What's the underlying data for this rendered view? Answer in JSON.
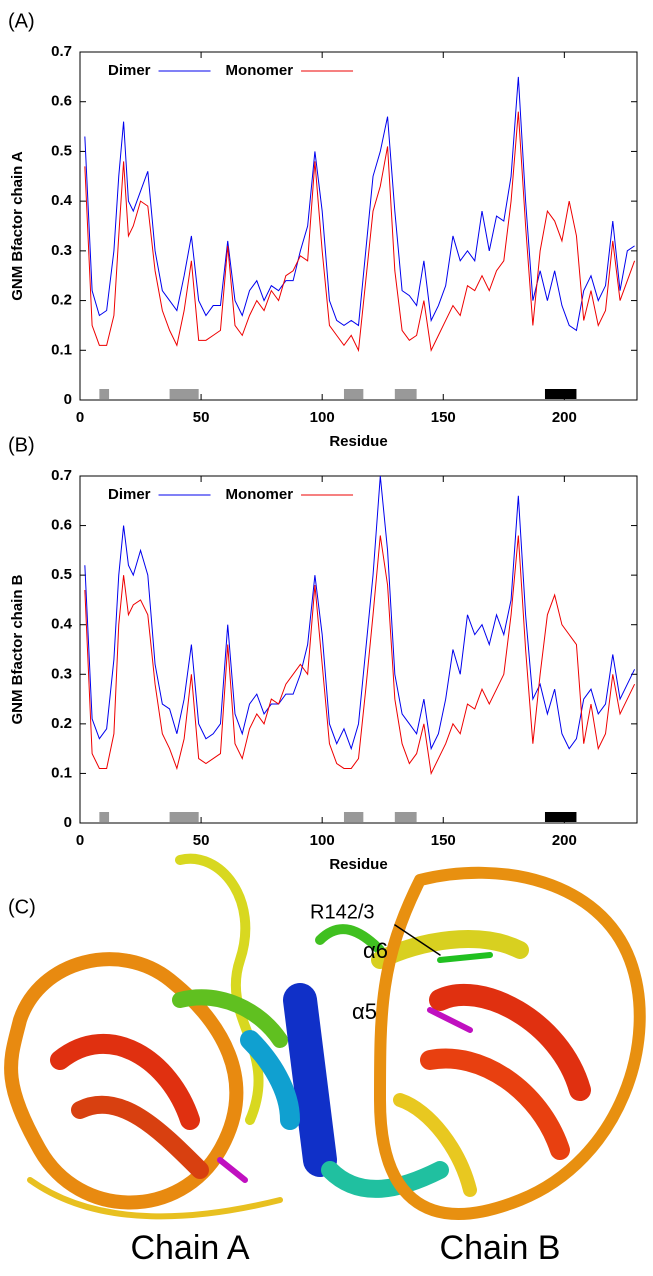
{
  "chart_data": [
    {
      "type": "line",
      "label": "(A)",
      "xlabel": "Residue",
      "ylabel": "GNM Bfactor chain A",
      "xlim": [
        0,
        230
      ],
      "xticks": [
        0,
        50,
        100,
        150,
        200
      ],
      "ylim": [
        0,
        0.7
      ],
      "yticks": [
        0,
        0.1,
        0.2,
        0.3,
        0.4,
        0.5,
        0.6,
        0.7
      ],
      "grid": false,
      "legend": "top-left",
      "x": [
        2,
        5,
        8,
        11,
        14,
        16,
        18,
        20,
        22,
        25,
        28,
        31,
        34,
        37,
        40,
        43,
        46,
        49,
        52,
        55,
        58,
        61,
        64,
        67,
        70,
        73,
        76,
        79,
        82,
        85,
        88,
        91,
        94,
        97,
        100,
        103,
        106,
        109,
        112,
        115,
        118,
        121,
        124,
        127,
        130,
        133,
        136,
        139,
        142,
        145,
        148,
        151,
        154,
        157,
        160,
        163,
        166,
        169,
        172,
        175,
        178,
        181,
        184,
        187,
        190,
        193,
        196,
        199,
        202,
        205,
        208,
        211,
        214,
        217,
        220,
        223,
        226,
        229
      ],
      "series": [
        {
          "name": "Dimer",
          "color": "#0000ee",
          "values": [
            0.53,
            0.22,
            0.17,
            0.18,
            0.3,
            0.45,
            0.56,
            0.4,
            0.38,
            0.42,
            0.46,
            0.3,
            0.22,
            0.2,
            0.18,
            0.25,
            0.33,
            0.2,
            0.17,
            0.19,
            0.19,
            0.32,
            0.2,
            0.17,
            0.22,
            0.24,
            0.2,
            0.23,
            0.22,
            0.24,
            0.24,
            0.3,
            0.35,
            0.5,
            0.38,
            0.2,
            0.16,
            0.15,
            0.16,
            0.15,
            0.3,
            0.45,
            0.5,
            0.57,
            0.38,
            0.22,
            0.21,
            0.19,
            0.28,
            0.16,
            0.19,
            0.23,
            0.33,
            0.28,
            0.3,
            0.28,
            0.38,
            0.3,
            0.37,
            0.36,
            0.45,
            0.65,
            0.4,
            0.2,
            0.26,
            0.2,
            0.26,
            0.19,
            0.15,
            0.14,
            0.22,
            0.25,
            0.2,
            0.23,
            0.36,
            0.22,
            0.3,
            0.31
          ]
        },
        {
          "name": "Monomer",
          "color": "#ee0000",
          "values": [
            0.47,
            0.15,
            0.11,
            0.11,
            0.17,
            0.33,
            0.48,
            0.33,
            0.35,
            0.4,
            0.39,
            0.26,
            0.18,
            0.14,
            0.11,
            0.18,
            0.28,
            0.12,
            0.12,
            0.13,
            0.14,
            0.31,
            0.15,
            0.13,
            0.17,
            0.2,
            0.18,
            0.22,
            0.2,
            0.25,
            0.26,
            0.29,
            0.28,
            0.48,
            0.3,
            0.15,
            0.13,
            0.11,
            0.13,
            0.1,
            0.24,
            0.38,
            0.43,
            0.51,
            0.26,
            0.14,
            0.12,
            0.13,
            0.2,
            0.1,
            0.13,
            0.16,
            0.19,
            0.17,
            0.23,
            0.22,
            0.25,
            0.22,
            0.26,
            0.28,
            0.4,
            0.58,
            0.35,
            0.15,
            0.3,
            0.38,
            0.36,
            0.32,
            0.4,
            0.33,
            0.16,
            0.22,
            0.15,
            0.18,
            0.32,
            0.2,
            0.24,
            0.28
          ]
        }
      ],
      "bands": [
        {
          "from": 8,
          "to": 12,
          "color": "#999999"
        },
        {
          "from": 37,
          "to": 49,
          "color": "#999999"
        },
        {
          "from": 109,
          "to": 117,
          "color": "#999999"
        },
        {
          "from": 130,
          "to": 139,
          "color": "#999999"
        },
        {
          "from": 192,
          "to": 205,
          "color": "#000000"
        }
      ]
    },
    {
      "type": "line",
      "label": "(B)",
      "xlabel": "Residue",
      "ylabel": "GNM Bfactor chain B",
      "xlim": [
        0,
        230
      ],
      "xticks": [
        0,
        50,
        100,
        150,
        200
      ],
      "ylim": [
        0,
        0.7
      ],
      "yticks": [
        0,
        0.1,
        0.2,
        0.3,
        0.4,
        0.5,
        0.6,
        0.7
      ],
      "grid": false,
      "legend": "top-left",
      "x": [
        2,
        5,
        8,
        11,
        14,
        16,
        18,
        20,
        22,
        25,
        28,
        31,
        34,
        37,
        40,
        43,
        46,
        49,
        52,
        55,
        58,
        61,
        64,
        67,
        70,
        73,
        76,
        79,
        82,
        85,
        88,
        91,
        94,
        97,
        100,
        103,
        106,
        109,
        112,
        115,
        118,
        121,
        124,
        127,
        130,
        133,
        136,
        139,
        142,
        145,
        148,
        151,
        154,
        157,
        160,
        163,
        166,
        169,
        172,
        175,
        178,
        181,
        184,
        187,
        190,
        193,
        196,
        199,
        202,
        205,
        208,
        211,
        214,
        217,
        220,
        223,
        226,
        229
      ],
      "series": [
        {
          "name": "Dimer",
          "color": "#0000ee",
          "values": [
            0.52,
            0.21,
            0.17,
            0.19,
            0.33,
            0.5,
            0.6,
            0.52,
            0.5,
            0.55,
            0.5,
            0.32,
            0.24,
            0.23,
            0.18,
            0.25,
            0.36,
            0.2,
            0.17,
            0.18,
            0.2,
            0.4,
            0.22,
            0.18,
            0.24,
            0.26,
            0.22,
            0.24,
            0.24,
            0.26,
            0.26,
            0.3,
            0.36,
            0.5,
            0.38,
            0.2,
            0.16,
            0.19,
            0.15,
            0.2,
            0.35,
            0.5,
            0.7,
            0.55,
            0.3,
            0.22,
            0.2,
            0.18,
            0.25,
            0.15,
            0.18,
            0.25,
            0.35,
            0.3,
            0.42,
            0.38,
            0.4,
            0.36,
            0.42,
            0.38,
            0.45,
            0.66,
            0.42,
            0.25,
            0.28,
            0.22,
            0.27,
            0.18,
            0.15,
            0.17,
            0.25,
            0.27,
            0.22,
            0.24,
            0.34,
            0.25,
            0.28,
            0.31
          ]
        },
        {
          "name": "Monomer",
          "color": "#ee0000",
          "values": [
            0.47,
            0.14,
            0.11,
            0.11,
            0.18,
            0.4,
            0.5,
            0.42,
            0.44,
            0.45,
            0.42,
            0.28,
            0.18,
            0.15,
            0.11,
            0.17,
            0.3,
            0.13,
            0.12,
            0.13,
            0.14,
            0.36,
            0.16,
            0.13,
            0.19,
            0.22,
            0.2,
            0.25,
            0.24,
            0.28,
            0.3,
            0.32,
            0.3,
            0.48,
            0.32,
            0.16,
            0.12,
            0.11,
            0.11,
            0.13,
            0.27,
            0.42,
            0.58,
            0.48,
            0.25,
            0.16,
            0.12,
            0.14,
            0.2,
            0.1,
            0.13,
            0.16,
            0.2,
            0.18,
            0.24,
            0.23,
            0.27,
            0.24,
            0.27,
            0.3,
            0.42,
            0.58,
            0.35,
            0.16,
            0.3,
            0.42,
            0.46,
            0.4,
            0.38,
            0.36,
            0.16,
            0.24,
            0.15,
            0.18,
            0.3,
            0.22,
            0.25,
            0.28
          ]
        }
      ],
      "bands": [
        {
          "from": 8,
          "to": 12,
          "color": "#999999"
        },
        {
          "from": 37,
          "to": 49,
          "color": "#999999"
        },
        {
          "from": 109,
          "to": 117,
          "color": "#999999"
        },
        {
          "from": 130,
          "to": 139,
          "color": "#999999"
        },
        {
          "from": 192,
          "to": 205,
          "color": "#000000"
        }
      ]
    }
  ],
  "panel_c": {
    "label": "(C)",
    "annotations": [
      "R142/3",
      "α6",
      "α5"
    ],
    "chains": [
      "Chain A",
      "Chain B"
    ]
  }
}
